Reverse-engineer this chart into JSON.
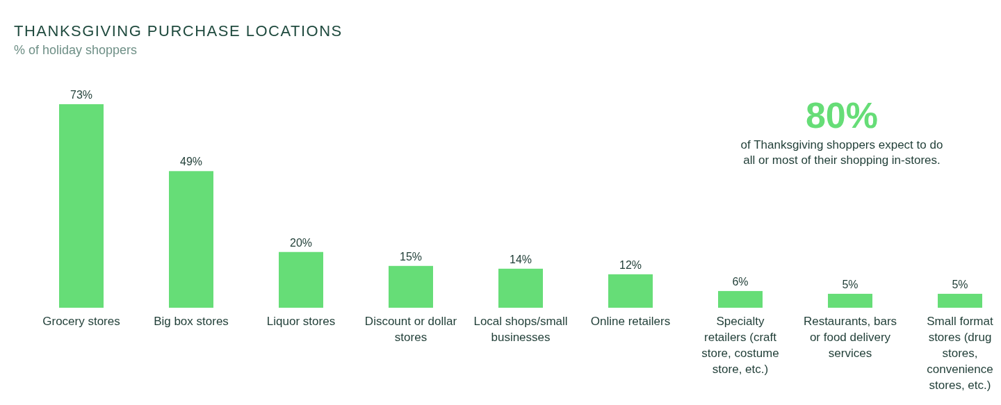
{
  "chart_data": {
    "type": "bar",
    "title": "THANKSGIVING PURCHASE LOCATIONS",
    "subtitle": "% of holiday shoppers",
    "categories": [
      "Grocery stores",
      "Big box stores",
      "Liquor stores",
      "Discount or dollar stores",
      "Local shops/small businesses",
      "Online retailers",
      "Specialty retailers (craft store, costume store, etc.)",
      "Restaurants, bars or food delivery services",
      "Small format stores (drug stores, convenience stores, etc.)"
    ],
    "values": [
      73,
      49,
      20,
      15,
      14,
      12,
      6,
      5,
      5
    ],
    "value_labels": [
      "73%",
      "49%",
      "20%",
      "15%",
      "14%",
      "12%",
      "6%",
      "5%",
      "5%"
    ],
    "color": "#66dd77",
    "annotations": [
      "80%",
      "of Thanksgiving shoppers expect to do all or most of their shopping in-stores."
    ]
  }
}
